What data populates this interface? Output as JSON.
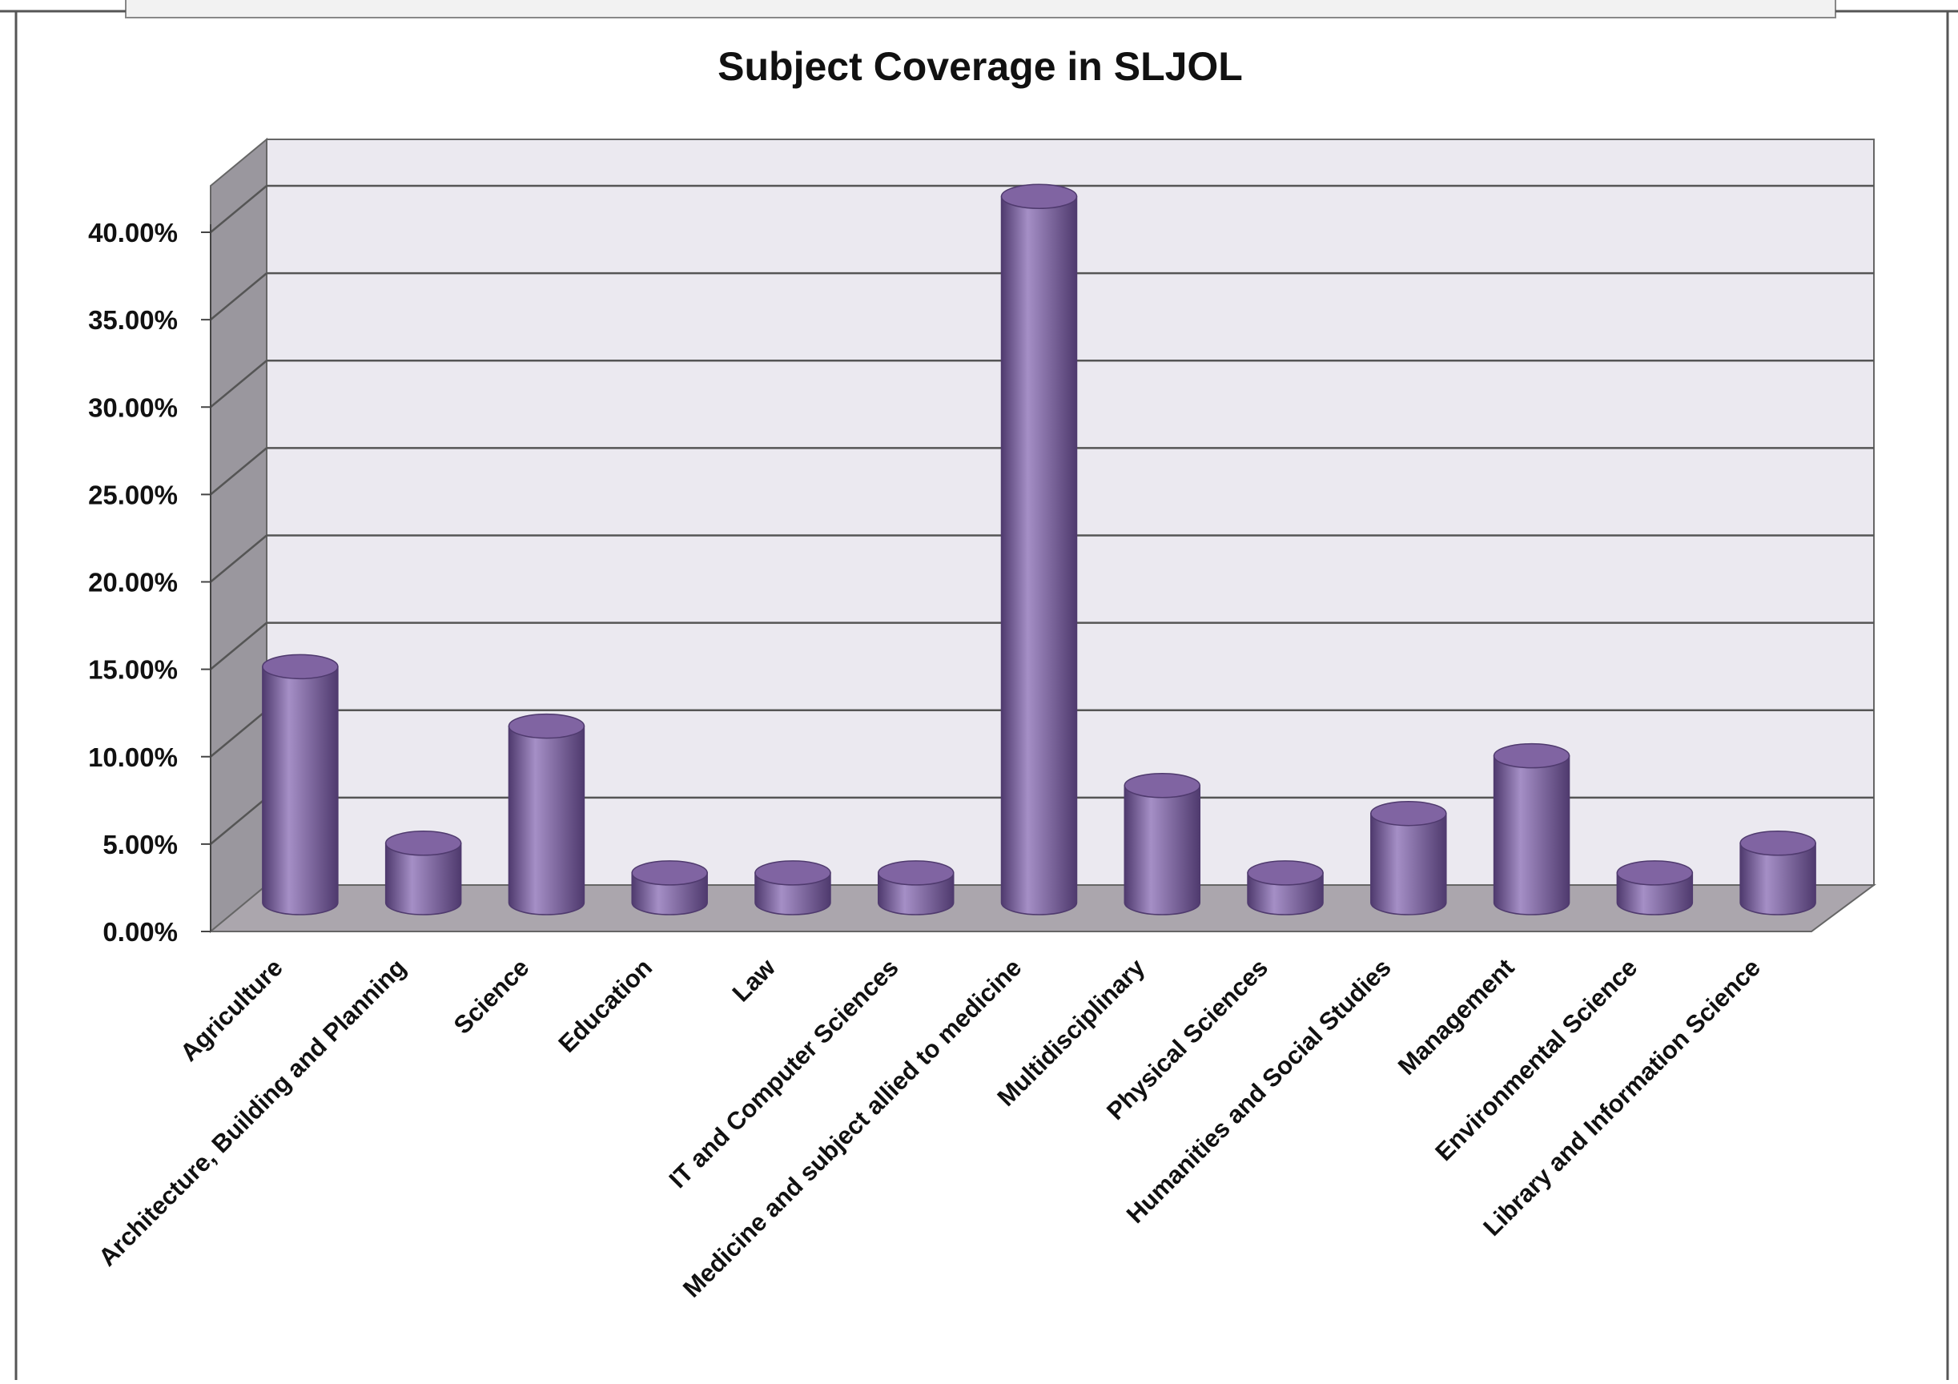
{
  "chart_data": {
    "type": "bar",
    "title": "Subject Coverage in SLJOL",
    "categories": [
      "Agriculture",
      "Architecture, Building and Planning",
      "Science",
      "Education",
      "Law",
      "IT and Computer Sciences",
      "Medicine and subject allied to medicine",
      "Multidisciplinary",
      "Physical Sciences",
      "Humanities and Social Studies",
      "Management",
      "Environmental Science",
      "Library and Information Science"
    ],
    "values": [
      13.5,
      3.4,
      10.1,
      1.7,
      1.7,
      1.7,
      40.4,
      6.7,
      1.7,
      5.1,
      8.4,
      1.7,
      3.4
    ],
    "ylim": [
      0,
      40
    ],
    "yticks": [
      "0.00%",
      "5.00%",
      "10.00%",
      "15.00%",
      "20.00%",
      "25.00%",
      "30.00%",
      "35.00%",
      "40.00%"
    ],
    "ylabel": "",
    "xlabel": "",
    "grid": true,
    "legend": "none",
    "style": "3d-cylinder",
    "colors": {
      "bar": "#8064a2",
      "bar_dark": "#4f3a6e",
      "bar_light": "#a58fc6",
      "wall": "#ebe9f0",
      "side_wall": "#9a979e",
      "floor": "#aba6ad",
      "grid": "#555555"
    }
  }
}
